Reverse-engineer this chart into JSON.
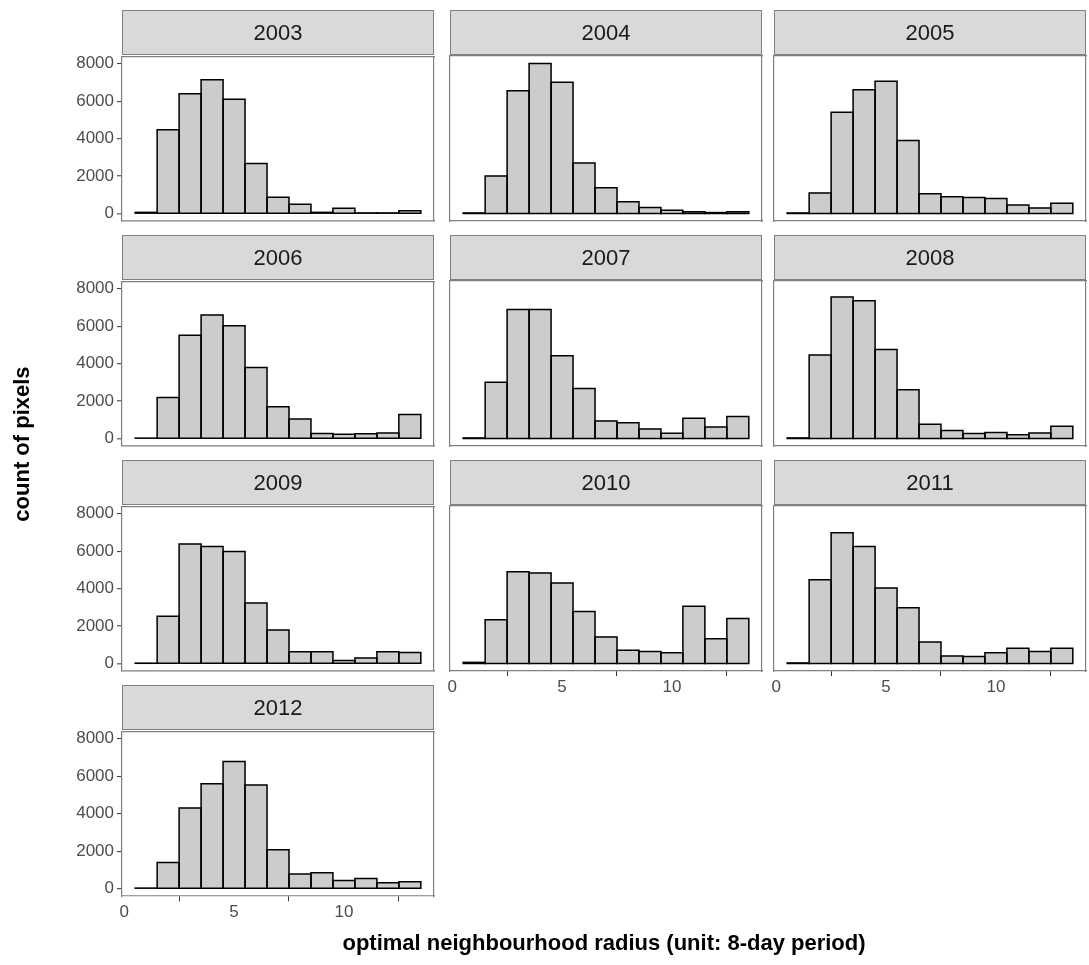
{
  "chart_data": [
    {
      "type": "histogram",
      "title": "2003",
      "bins": [
        0.5,
        1.5,
        2.5,
        3.5,
        4.5,
        5.5,
        6.5,
        7.5,
        8.5,
        9.5,
        10.5,
        11.5,
        12.5,
        13.5
      ],
      "values": [
        70,
        4480,
        6400,
        7150,
        6100,
        2670,
        870,
        500,
        70,
        290,
        40,
        40,
        150
      ],
      "color": "#cccccc",
      "xlim": [
        -0.1,
        14.1
      ],
      "ylim": [
        -400,
        8400
      ],
      "xticks": [
        0,
        5,
        10
      ],
      "yticks": [
        0,
        2000,
        4000,
        6000,
        8000
      ],
      "tick_labels": "y"
    },
    {
      "type": "histogram",
      "title": "2004",
      "bins": [
        0.5,
        1.5,
        2.5,
        3.5,
        4.5,
        5.5,
        6.5,
        7.5,
        8.5,
        9.5,
        10.5,
        11.5,
        12.5,
        13.5
      ],
      "values": [
        30,
        2000,
        6550,
        8000,
        7000,
        2700,
        1370,
        630,
        320,
        180,
        100,
        50,
        100
      ],
      "color": "#cccccc",
      "xlim": [
        -0.1,
        14.1
      ],
      "ylim": [
        -400,
        8400
      ],
      "xticks": [
        0,
        5,
        10
      ],
      "yticks": [
        0,
        2000,
        4000,
        6000,
        8000
      ],
      "tick_labels": false
    },
    {
      "type": "histogram",
      "title": "2005",
      "bins": [
        0.5,
        1.5,
        2.5,
        3.5,
        4.5,
        5.5,
        6.5,
        7.5,
        8.5,
        9.5,
        10.5,
        11.5,
        12.5,
        13.5
      ],
      "values": [
        30,
        1100,
        5400,
        6600,
        7050,
        3900,
        1050,
        900,
        850,
        800,
        450,
        300,
        550
      ],
      "color": "#cccccc",
      "xlim": [
        -0.1,
        14.1
      ],
      "ylim": [
        -400,
        8400
      ],
      "xticks": [
        0,
        5,
        10
      ],
      "yticks": [
        0,
        2000,
        4000,
        6000,
        8000
      ],
      "tick_labels": false
    },
    {
      "type": "histogram",
      "title": "2006",
      "ylabel": "count of pixels",
      "bins": [
        0.5,
        1.5,
        2.5,
        3.5,
        4.5,
        5.5,
        6.5,
        7.5,
        8.5,
        9.5,
        10.5,
        11.5,
        12.5,
        13.5
      ],
      "values": [
        30,
        2200,
        5520,
        6600,
        6030,
        3800,
        1700,
        1050,
        280,
        230,
        260,
        300,
        1290
      ],
      "color": "#cccccc",
      "xlim": [
        -0.1,
        14.1
      ],
      "ylim": [
        -400,
        8400
      ],
      "xticks": [
        0,
        5,
        10
      ],
      "yticks": [
        0,
        2000,
        4000,
        6000,
        8000
      ],
      "tick_labels": "y"
    },
    {
      "type": "histogram",
      "title": "2007",
      "bins": [
        0.5,
        1.5,
        2.5,
        3.5,
        4.5,
        5.5,
        6.5,
        7.5,
        8.5,
        9.5,
        10.5,
        11.5,
        12.5,
        13.5
      ],
      "values": [
        30,
        3000,
        6880,
        6880,
        4420,
        2670,
        940,
        840,
        510,
        280,
        1080,
        610,
        1170
      ],
      "color": "#cccccc",
      "xlim": [
        -0.1,
        14.1
      ],
      "ylim": [
        -400,
        8400
      ],
      "xticks": [
        0,
        5,
        10
      ],
      "yticks": [
        0,
        2000,
        4000,
        6000,
        8000
      ],
      "tick_labels": false
    },
    {
      "type": "histogram",
      "title": "2008",
      "bins": [
        0.5,
        1.5,
        2.5,
        3.5,
        4.5,
        5.5,
        6.5,
        7.5,
        8.5,
        9.5,
        10.5,
        11.5,
        12.5,
        13.5
      ],
      "values": [
        30,
        4450,
        7550,
        7350,
        4750,
        2600,
        760,
        430,
        270,
        320,
        200,
        290,
        650
      ],
      "color": "#cccccc",
      "xlim": [
        -0.1,
        14.1
      ],
      "ylim": [
        -400,
        8400
      ],
      "xticks": [
        0,
        5,
        10
      ],
      "yticks": [
        0,
        2000,
        4000,
        6000,
        8000
      ],
      "tick_labels": false
    },
    {
      "type": "histogram",
      "title": "2009",
      "bins": [
        0.5,
        1.5,
        2.5,
        3.5,
        4.5,
        5.5,
        6.5,
        7.5,
        8.5,
        9.5,
        10.5,
        11.5,
        12.5,
        13.5
      ],
      "values": [
        20,
        2530,
        6380,
        6250,
        5980,
        3240,
        1790,
        640,
        640,
        170,
        300,
        640,
        600
      ],
      "color": "#cccccc",
      "xlim": [
        -0.1,
        14.1
      ],
      "ylim": [
        -400,
        8400
      ],
      "xticks": [
        0,
        5,
        10
      ],
      "yticks": [
        0,
        2000,
        4000,
        6000,
        8000
      ],
      "tick_labels": "y"
    },
    {
      "type": "histogram",
      "title": "2010",
      "bins": [
        0.5,
        1.5,
        2.5,
        3.5,
        4.5,
        5.5,
        6.5,
        7.5,
        8.5,
        9.5,
        10.5,
        11.5,
        12.5,
        13.5
      ],
      "values": [
        60,
        2330,
        4900,
        4830,
        4290,
        2770,
        1420,
        710,
        640,
        580,
        3050,
        1320,
        2400
      ],
      "color": "#cccccc",
      "xlim": [
        -0.1,
        14.1
      ],
      "ylim": [
        -400,
        8400
      ],
      "xticks": [
        0,
        5,
        10
      ],
      "yticks": [
        0,
        2000,
        4000,
        6000,
        8000
      ],
      "tick_labels": "x"
    },
    {
      "type": "histogram",
      "title": "2011",
      "bins": [
        0.5,
        1.5,
        2.5,
        3.5,
        4.5,
        5.5,
        6.5,
        7.5,
        8.5,
        9.5,
        10.5,
        11.5,
        12.5,
        13.5
      ],
      "values": [
        30,
        4470,
        6980,
        6240,
        4030,
        2980,
        1150,
        400,
        370,
        580,
        810,
        640,
        810
      ],
      "color": "#cccccc",
      "xlim": [
        -0.1,
        14.1
      ],
      "ylim": [
        -400,
        8400
      ],
      "xticks": [
        0,
        5,
        10
      ],
      "yticks": [
        0,
        2000,
        4000,
        6000,
        8000
      ],
      "tick_labels": "x"
    },
    {
      "type": "histogram",
      "title": "2012",
      "xlabel": "optimal neighbourhood radius (unit: 8-day period)",
      "bins": [
        0.5,
        1.5,
        2.5,
        3.5,
        4.5,
        5.5,
        6.5,
        7.5,
        8.5,
        9.5,
        10.5,
        11.5,
        12.5,
        13.5
      ],
      "values": [
        30,
        1390,
        4300,
        5600,
        6780,
        5530,
        2070,
        780,
        850,
        440,
        540,
        310,
        370
      ],
      "color": "#cccccc",
      "xlim": [
        -0.1,
        14.1
      ],
      "ylim": [
        -400,
        8400
      ],
      "xticks": [
        0,
        5,
        10
      ],
      "yticks": [
        0,
        2000,
        4000,
        6000,
        8000
      ]
    }
  ]
}
